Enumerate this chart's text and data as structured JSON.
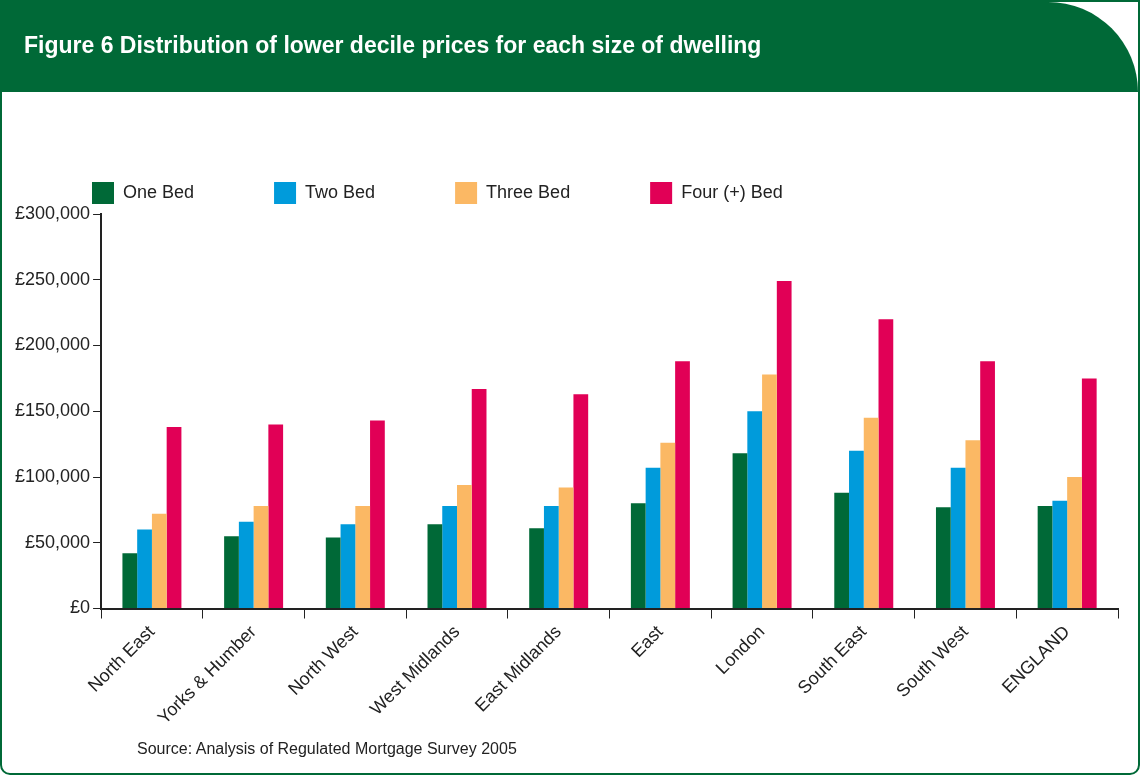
{
  "chart_data": {
    "type": "bar",
    "title": "Figure 6 Distribution of lower decile prices for each size of dwelling",
    "categories": [
      "North East",
      "Yorks & Humber",
      "North West",
      "West Midlands",
      "East Midlands",
      "East",
      "London",
      "South East",
      "South West",
      "ENGLAND"
    ],
    "series": [
      {
        "name": "One Bed",
        "color": "#006937",
        "values": [
          42000,
          55000,
          54000,
          64000,
          61000,
          80000,
          118000,
          88000,
          77000,
          78000
        ]
      },
      {
        "name": "Two Bed",
        "color": "#009bdb",
        "values": [
          60000,
          66000,
          64000,
          78000,
          78000,
          107000,
          150000,
          120000,
          107000,
          82000
        ]
      },
      {
        "name": "Three Bed",
        "color": "#fbb864",
        "values": [
          72000,
          78000,
          78000,
          94000,
          92000,
          126000,
          178000,
          145000,
          128000,
          100000
        ]
      },
      {
        "name": "Four (+) Bed",
        "color": "#e10056",
        "values": [
          138000,
          140000,
          143000,
          167000,
          163000,
          188000,
          249000,
          220000,
          188000,
          175000
        ]
      }
    ],
    "ylim": [
      0,
      300000
    ],
    "yticks": [
      {
        "value": 0,
        "label": "£0"
      },
      {
        "value": 50000,
        "label": "£50,000"
      },
      {
        "value": 100000,
        "label": "£100,000"
      },
      {
        "value": 150000,
        "label": "£150,000"
      },
      {
        "value": 200000,
        "label": "£200,000"
      },
      {
        "value": 250000,
        "label": "£250,000"
      },
      {
        "value": 300000,
        "label": "£300,000"
      }
    ],
    "grid": false,
    "legend": "top left",
    "annotations": [
      "Source: Analysis of Regulated Mortgage Survey 2005"
    ]
  }
}
